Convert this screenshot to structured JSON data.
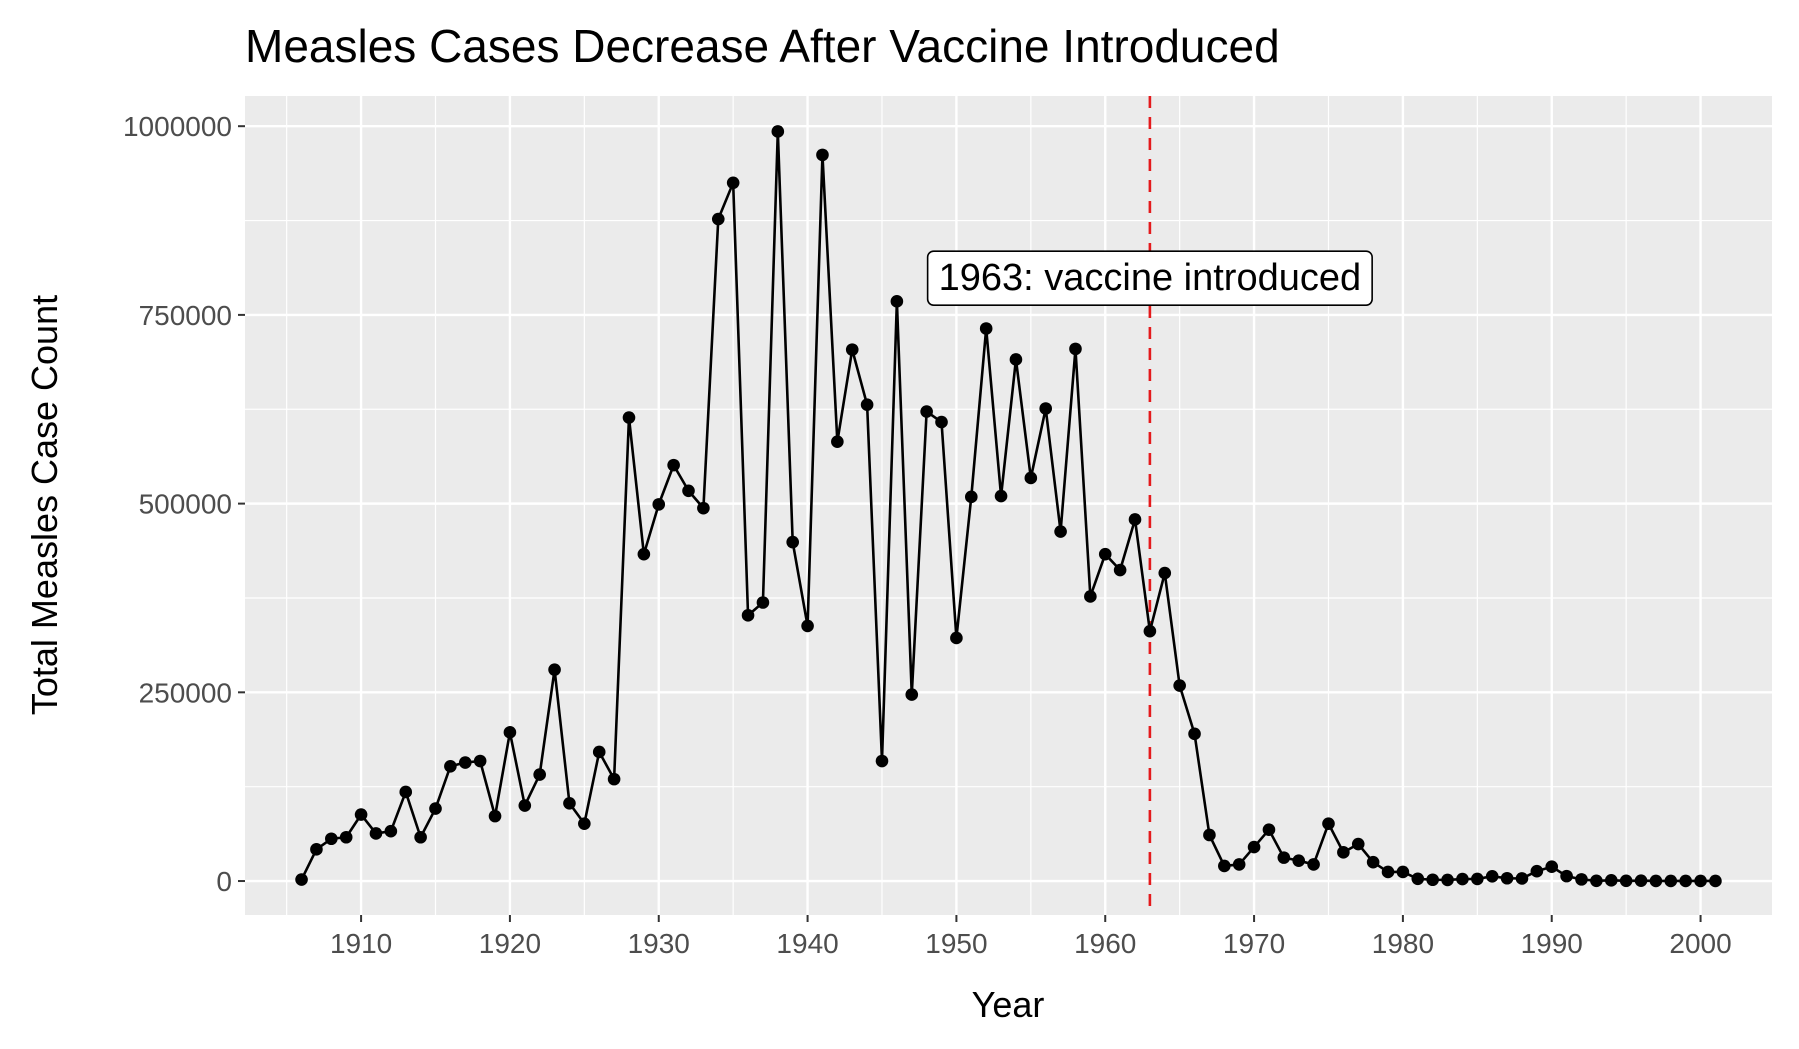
{
  "chart_data": {
    "type": "line",
    "title": "Measles Cases Decrease After Vaccine Introduced",
    "xlabel": "Year",
    "ylabel": "Total Measles Case Count",
    "xlim": [
      1902.2,
      2004.8
    ],
    "ylim": [
      -45000,
      1040000
    ],
    "x_ticks": [
      1910,
      1920,
      1930,
      1940,
      1950,
      1960,
      1970,
      1980,
      1990,
      2000
    ],
    "y_ticks": [
      0,
      250000,
      500000,
      750000,
      1000000
    ],
    "y_tick_labels": [
      "0",
      "250000",
      "500000",
      "750000",
      "1000000"
    ],
    "grid": true,
    "legend": "none",
    "colors": {
      "panel_background": "#ebebeb",
      "grid_line": "#ffffff",
      "series": "#000000",
      "reference_line": "#e41a1c"
    },
    "reference_line": {
      "x": 1963,
      "style": "dashed"
    },
    "annotation": {
      "text": "1963: vaccine introduced",
      "x": 1963,
      "y": 800000
    },
    "series": [
      {
        "x": [
          1906,
          1907,
          1908,
          1909,
          1910,
          1911,
          1912,
          1913,
          1914,
          1915,
          1916,
          1917,
          1918,
          1919,
          1920,
          1921,
          1922,
          1923,
          1924,
          1925,
          1926,
          1927,
          1928,
          1929,
          1930,
          1931,
          1932,
          1933,
          1934,
          1935,
          1936,
          1937,
          1938,
          1939,
          1940,
          1941,
          1942,
          1943,
          1944,
          1945,
          1946,
          1947,
          1948,
          1949,
          1950,
          1951,
          1952,
          1953,
          1954,
          1955,
          1956,
          1957,
          1958,
          1959,
          1960,
          1961,
          1962,
          1963,
          1964,
          1965,
          1966,
          1967,
          1968,
          1969,
          1970,
          1971,
          1972,
          1973,
          1974,
          1975,
          1976,
          1977,
          1978,
          1979,
          1980,
          1981,
          1982,
          1983,
          1984,
          1985,
          1986,
          1987,
          1988,
          1989,
          1990,
          1991,
          1992,
          1993,
          1994,
          1995,
          1996,
          1997,
          1998,
          1999,
          2000,
          2001
        ],
        "y": [
          2000,
          42000,
          56000,
          58000,
          88000,
          63000,
          66000,
          118000,
          58000,
          96000,
          152000,
          157000,
          159000,
          86000,
          197000,
          100000,
          141000,
          280000,
          103000,
          76000,
          171000,
          135000,
          614000,
          433000,
          499000,
          551000,
          517000,
          494000,
          877000,
          925000,
          352000,
          369000,
          993000,
          449000,
          338000,
          962000,
          582000,
          704000,
          631000,
          159000,
          768000,
          247000,
          622000,
          608000,
          322000,
          509000,
          732000,
          510000,
          691000,
          534000,
          626000,
          463000,
          705000,
          377000,
          433000,
          412000,
          479000,
          331000,
          408000,
          259000,
          195000,
          61000,
          20000,
          22000,
          45000,
          68000,
          31000,
          27000,
          22000,
          76000,
          38000,
          49000,
          25000,
          12000,
          12000,
          3000,
          1700,
          1500,
          2600,
          2800,
          6300,
          3700,
          3400,
          13000,
          19000,
          6500,
          2200,
          300,
          950,
          300,
          500,
          140,
          100,
          100,
          86,
          116
        ]
      }
    ]
  }
}
